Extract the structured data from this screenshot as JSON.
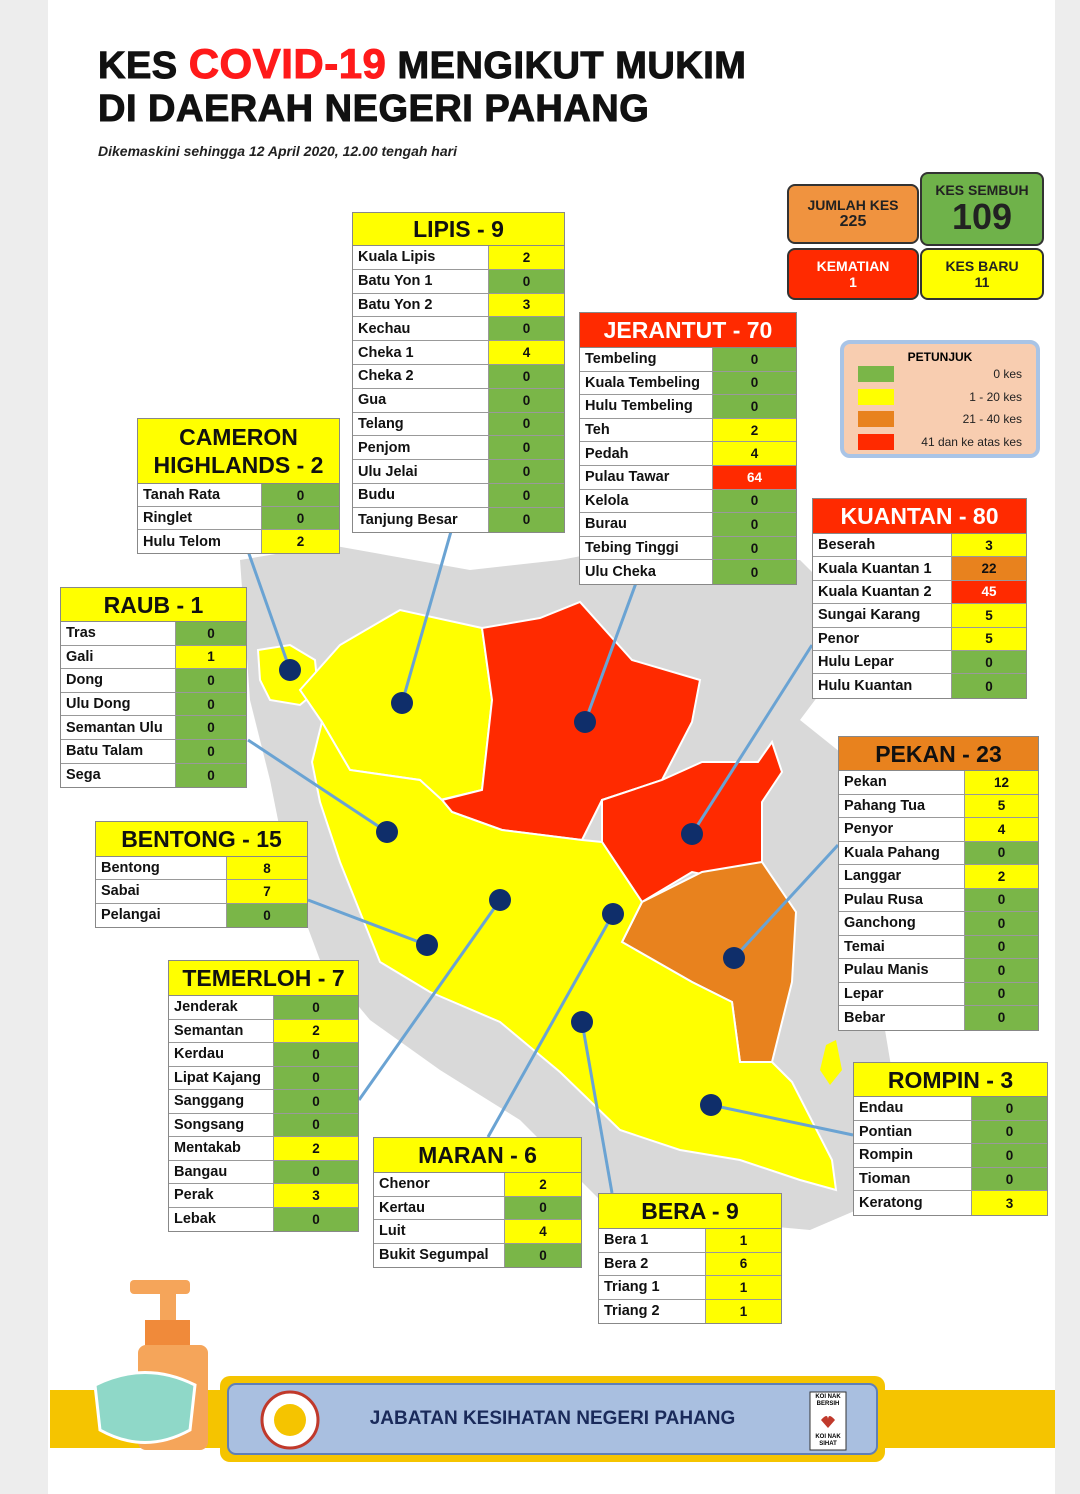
{
  "header": {
    "title_pre": "KES",
    "title_highlight": "COVID-19",
    "title_post": "MENGIKUT MUKIM",
    "title_line2": "DI DAERAH NEGERI PAHANG",
    "subtitle": "Dikemaskini sehingga 12 April 2020, 12.00 tengah hari"
  },
  "stats": [
    {
      "label": "JUMLAH KES",
      "value": 225,
      "color": "#f0933f"
    },
    {
      "label": "KES SEMBUH",
      "value": 109,
      "color": "#6fb24a"
    },
    {
      "label": "KEMATIAN",
      "value": 1,
      "color": "#ff2a00"
    },
    {
      "label": "KES BARU",
      "value": 11,
      "color": "#ffff00"
    }
  ],
  "legend": {
    "title": "PETUNJUK",
    "items": [
      {
        "label": "0 kes",
        "color": "#7ab648"
      },
      {
        "label": "1 - 20 kes",
        "color": "#ffff00"
      },
      {
        "label": "21 - 40 kes",
        "color": "#e8821e"
      },
      {
        "label": "41 dan ke atas kes",
        "color": "#ff2a00"
      }
    ]
  },
  "districts": [
    {
      "title": "LIPIS - 9",
      "rows": [
        [
          "Kuala Lipis",
          2
        ],
        [
          "Batu Yon 1",
          0
        ],
        [
          "Batu Yon 2",
          3
        ],
        [
          "Kechau",
          0
        ],
        [
          "Cheka 1",
          4
        ],
        [
          "Cheka 2",
          0
        ],
        [
          "Gua",
          0
        ],
        [
          "Telang",
          0
        ],
        [
          "Penjom",
          0
        ],
        [
          "Ulu Jelai",
          0
        ],
        [
          "Budu",
          0
        ],
        [
          "Tanjung Besar",
          0
        ]
      ]
    },
    {
      "title": "CAMERON HIGHLANDS - 2",
      "rows": [
        [
          "Tanah Rata",
          0
        ],
        [
          "Ringlet",
          0
        ],
        [
          "Hulu Telom",
          2
        ]
      ]
    },
    {
      "title": "RAUB - 1",
      "rows": [
        [
          "Tras",
          0
        ],
        [
          "Gali",
          1
        ],
        [
          "Dong",
          0
        ],
        [
          "Ulu Dong",
          0
        ],
        [
          "Semantan Ulu",
          0
        ],
        [
          "Batu Talam",
          0
        ],
        [
          "Sega",
          0
        ]
      ]
    },
    {
      "title": "BENTONG - 15",
      "rows": [
        [
          "Bentong",
          8
        ],
        [
          "Sabai",
          7
        ],
        [
          "Pelangai",
          0
        ]
      ]
    },
    {
      "title": "TEMERLOH - 7",
      "rows": [
        [
          "Jenderak",
          0
        ],
        [
          "Semantan",
          2
        ],
        [
          "Kerdau",
          0
        ],
        [
          "Lipat Kajang",
          0
        ],
        [
          "Sanggang",
          0
        ],
        [
          "Songsang",
          0
        ],
        [
          "Mentakab",
          2
        ],
        [
          "Bangau",
          0
        ],
        [
          "Perak",
          3
        ],
        [
          "Lebak",
          0
        ]
      ]
    },
    {
      "title": "MARAN - 6",
      "rows": [
        [
          "Chenor",
          2
        ],
        [
          "Kertau",
          0
        ],
        [
          "Luit",
          4
        ],
        [
          "Bukit Segumpal",
          0
        ]
      ]
    },
    {
      "title": "BERA - 9",
      "rows": [
        [
          "Bera 1",
          1
        ],
        [
          "Bera 2",
          6
        ],
        [
          "Triang 1",
          1
        ],
        [
          "Triang 2",
          1
        ]
      ]
    },
    {
      "title": "JERANTUT - 70",
      "rows": [
        [
          "Tembeling",
          0
        ],
        [
          "Kuala Tembeling",
          0
        ],
        [
          "Hulu Tembeling",
          0
        ],
        [
          "Teh",
          2
        ],
        [
          "Pedah",
          4
        ],
        [
          "Pulau Tawar",
          64
        ],
        [
          "Kelola",
          0
        ],
        [
          "Burau",
          0
        ],
        [
          "Tebing Tinggi",
          0
        ],
        [
          "Ulu Cheka",
          0
        ]
      ]
    },
    {
      "title": "KUANTAN - 80",
      "rows": [
        [
          "Beserah",
          3
        ],
        [
          "Kuala Kuantan 1",
          22
        ],
        [
          "Kuala Kuantan 2",
          45
        ],
        [
          "Sungai Karang",
          5
        ],
        [
          "Penor",
          5
        ],
        [
          "Hulu Lepar",
          0
        ],
        [
          "Hulu Kuantan",
          0
        ]
      ]
    },
    {
      "title": "PEKAN - 23",
      "rows": [
        [
          "Pekan",
          12
        ],
        [
          "Pahang Tua",
          5
        ],
        [
          "Penyor",
          4
        ],
        [
          "Kuala Pahang",
          0
        ],
        [
          "Langgar",
          2
        ],
        [
          "Pulau Rusa",
          0
        ],
        [
          "Ganchong",
          0
        ],
        [
          "Temai",
          0
        ],
        [
          "Pulau Manis",
          0
        ],
        [
          "Lepar",
          0
        ],
        [
          "Bebar",
          0
        ]
      ]
    },
    {
      "title": "ROMPIN - 3",
      "rows": [
        [
          "Endau",
          0
        ],
        [
          "Pontian",
          0
        ],
        [
          "Rompin",
          0
        ],
        [
          "Tioman",
          0
        ],
        [
          "Keratong",
          3
        ]
      ]
    }
  ],
  "footer": {
    "text": "JABATAN KESIHATAN NEGERI PAHANG",
    "badge_top": "KOI NAK BERSIH",
    "badge_bottom": "KOI NAK SIHAT"
  }
}
